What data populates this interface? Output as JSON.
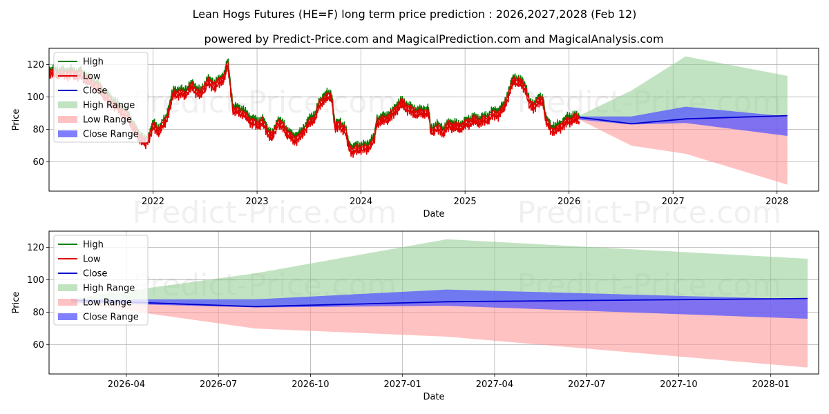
{
  "chart_data": [
    {
      "type": "line",
      "title": "Lean Hogs Futures (HE=F) long term price prediction : 2026,2027,2028 (Feb 12)",
      "subtitle": "powered by Predict-Price.com and MagicalPrediction.com and MagicalAnalysis.com",
      "watermark": "Predict-Price.com",
      "xlabel": "Date",
      "ylabel": "Price",
      "x_range": [
        2021.0,
        2028.4
      ],
      "ylim": [
        42,
        130
      ],
      "x_ticks": [
        2022,
        2023,
        2024,
        2025,
        2026,
        2027,
        2028
      ],
      "x_tick_labels": [
        "2022",
        "2023",
        "2024",
        "2025",
        "2026",
        "2027",
        "2028"
      ],
      "y_ticks": [
        60,
        80,
        100,
        120
      ],
      "y_tick_labels": [
        "60",
        "80",
        "100",
        "120"
      ],
      "grid": true,
      "legend_position": "top-left",
      "legend": [
        "High",
        "Low",
        "Close",
        "High Range",
        "Low Range",
        "Close Range"
      ],
      "colors": {
        "high": "#008000",
        "low": "#e00000",
        "close": "#0000cc",
        "high_range": "#8fcc8f",
        "low_range": "#ff9999",
        "close_range": "#5555ff"
      },
      "history_anchors": [
        [
          2021.0,
          116
        ],
        [
          2021.3,
          115
        ],
        [
          2021.45,
          108
        ],
        [
          2021.6,
          98
        ],
        [
          2021.75,
          90
        ],
        [
          2021.85,
          78
        ],
        [
          2021.93,
          72
        ],
        [
          2022.0,
          83
        ],
        [
          2022.05,
          80
        ],
        [
          2022.12,
          86
        ],
        [
          2022.2,
          104
        ],
        [
          2022.3,
          103
        ],
        [
          2022.38,
          108
        ],
        [
          2022.45,
          102
        ],
        [
          2022.52,
          110
        ],
        [
          2022.6,
          108
        ],
        [
          2022.68,
          113
        ],
        [
          2022.72,
          121
        ],
        [
          2022.74,
          110
        ],
        [
          2022.77,
          93
        ],
        [
          2022.85,
          92
        ],
        [
          2022.95,
          86
        ],
        [
          2023.0,
          84
        ],
        [
          2023.05,
          86
        ],
        [
          2023.1,
          80
        ],
        [
          2023.15,
          76
        ],
        [
          2023.2,
          86
        ],
        [
          2023.28,
          80
        ],
        [
          2023.35,
          75
        ],
        [
          2023.42,
          77
        ],
        [
          2023.48,
          84
        ],
        [
          2023.55,
          88
        ],
        [
          2023.6,
          96
        ],
        [
          2023.65,
          101
        ],
        [
          2023.72,
          101
        ],
        [
          2023.75,
          82
        ],
        [
          2023.8,
          84
        ],
        [
          2023.85,
          80
        ],
        [
          2023.88,
          71
        ],
        [
          2023.92,
          68
        ],
        [
          2024.0,
          70
        ],
        [
          2024.05,
          69
        ],
        [
          2024.1,
          73
        ],
        [
          2024.13,
          75
        ],
        [
          2024.15,
          86
        ],
        [
          2024.22,
          87
        ],
        [
          2024.3,
          90
        ],
        [
          2024.35,
          95
        ],
        [
          2024.4,
          97
        ],
        [
          2024.47,
          93
        ],
        [
          2024.55,
          91
        ],
        [
          2024.62,
          92
        ],
        [
          2024.65,
          91
        ],
        [
          2024.67,
          80
        ],
        [
          2024.72,
          82
        ],
        [
          2024.8,
          80
        ],
        [
          2024.85,
          84
        ],
        [
          2024.93,
          82
        ],
        [
          2025.0,
          84
        ],
        [
          2025.08,
          87
        ],
        [
          2025.12,
          86
        ],
        [
          2025.2,
          87
        ],
        [
          2025.25,
          90
        ],
        [
          2025.32,
          91
        ],
        [
          2025.37,
          94
        ],
        [
          2025.42,
          103
        ],
        [
          2025.47,
          112
        ],
        [
          2025.52,
          110
        ],
        [
          2025.58,
          107
        ],
        [
          2025.62,
          96
        ],
        [
          2025.65,
          95
        ],
        [
          2025.7,
          98
        ],
        [
          2025.75,
          99
        ],
        [
          2025.78,
          86
        ],
        [
          2025.83,
          81
        ],
        [
          2025.88,
          81
        ],
        [
          2025.93,
          84
        ],
        [
          2025.98,
          86
        ],
        [
          2026.0,
          87
        ],
        [
          2026.05,
          88
        ],
        [
          2026.1,
          87
        ]
      ],
      "forecast_x": [
        2026.1,
        2026.6,
        2027.12,
        2028.1
      ],
      "high_range_upper": [
        88.5,
        104,
        125,
        113
      ],
      "low_range_lower": [
        86,
        70,
        65,
        46
      ],
      "close_range_upper": [
        88,
        88,
        94,
        88
      ],
      "close_range_lower": [
        86,
        83,
        84,
        76
      ],
      "close_forecast": [
        87.5,
        83.5,
        86.5,
        88.5
      ]
    },
    {
      "type": "line",
      "xlabel": "Date",
      "ylabel": "Price",
      "x_range": [
        2026.04,
        2028.13
      ],
      "ylim": [
        42,
        130
      ],
      "x_ticks": [
        2026.25,
        2026.5,
        2026.75,
        2027.0,
        2027.25,
        2027.5,
        2027.75,
        2028.0
      ],
      "x_tick_labels": [
        "2026-04",
        "2026-07",
        "2026-10",
        "2027-01",
        "2027-04",
        "2027-07",
        "2027-10",
        "2028-01"
      ],
      "y_ticks": [
        60,
        80,
        100,
        120
      ],
      "y_tick_labels": [
        "60",
        "80",
        "100",
        "120"
      ],
      "grid": true,
      "legend_position": "top-left",
      "legend": [
        "High",
        "Low",
        "Close",
        "High Range",
        "Low Range",
        "Close Range"
      ],
      "forecast_x": [
        2026.1,
        2026.6,
        2027.12,
        2028.1
      ],
      "high_range_upper": [
        88.5,
        104,
        125,
        113
      ],
      "low_range_lower": [
        86,
        70,
        65,
        46
      ],
      "close_range_upper": [
        88,
        88,
        94,
        88
      ],
      "close_range_lower": [
        86,
        83,
        84,
        76
      ],
      "close_forecast": [
        87.5,
        83.5,
        86.5,
        88.5
      ]
    }
  ]
}
